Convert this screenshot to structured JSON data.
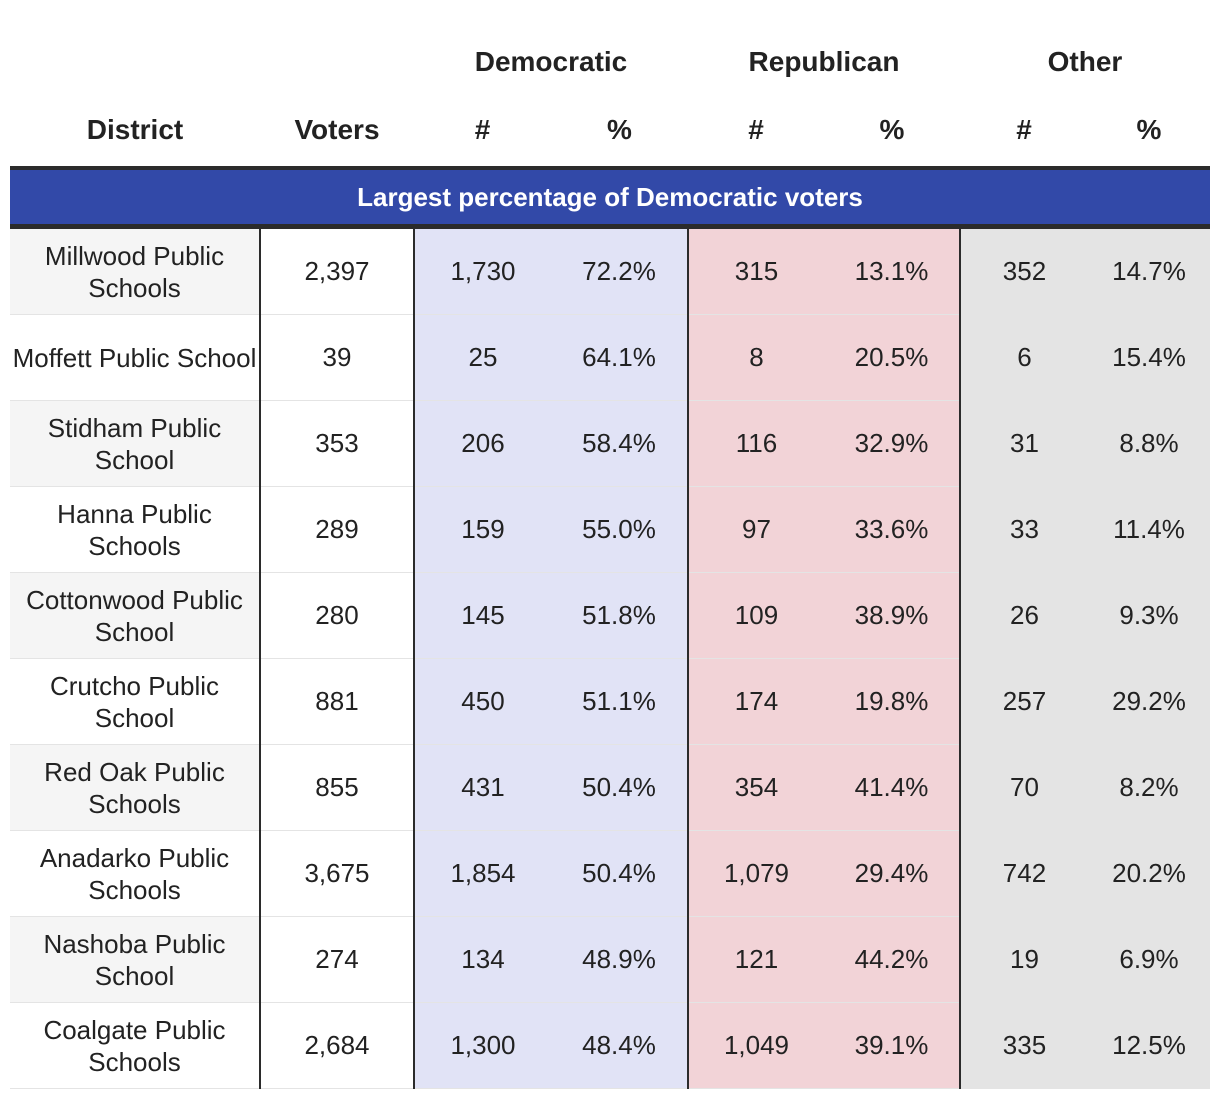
{
  "colors": {
    "banner": "#3249a8",
    "democratic_tint": "#e1e3f6",
    "republican_tint": "#f2d3d7",
    "other_tint": "#e4e4e4",
    "district_row_alt": "#f5f5f5"
  },
  "headers": {
    "groups": {
      "democratic": "Democratic",
      "republican": "Republican",
      "other": "Other"
    },
    "columns": {
      "district": "District",
      "voters": "Voters",
      "dem_num": "#",
      "dem_pct": "%",
      "rep_num": "#",
      "rep_pct": "%",
      "oth_num": "#",
      "oth_pct": "%"
    }
  },
  "section_title": "Largest percentage of Democratic voters",
  "rows": [
    {
      "district": "Millwood Public Schools",
      "voters": "2,397",
      "dem_num": "1,730",
      "dem_pct": "72.2%",
      "rep_num": "315",
      "rep_pct": "13.1%",
      "oth_num": "352",
      "oth_pct": "14.7%"
    },
    {
      "district": "Moffett Public School",
      "voters": "39",
      "dem_num": "25",
      "dem_pct": "64.1%",
      "rep_num": "8",
      "rep_pct": "20.5%",
      "oth_num": "6",
      "oth_pct": "15.4%"
    },
    {
      "district": "Stidham Public School",
      "voters": "353",
      "dem_num": "206",
      "dem_pct": "58.4%",
      "rep_num": "116",
      "rep_pct": "32.9%",
      "oth_num": "31",
      "oth_pct": "8.8%"
    },
    {
      "district": "Hanna Public Schools",
      "voters": "289",
      "dem_num": "159",
      "dem_pct": "55.0%",
      "rep_num": "97",
      "rep_pct": "33.6%",
      "oth_num": "33",
      "oth_pct": "11.4%"
    },
    {
      "district": "Cottonwood Public School",
      "voters": "280",
      "dem_num": "145",
      "dem_pct": "51.8%",
      "rep_num": "109",
      "rep_pct": "38.9%",
      "oth_num": "26",
      "oth_pct": "9.3%"
    },
    {
      "district": "Crutcho Public School",
      "voters": "881",
      "dem_num": "450",
      "dem_pct": "51.1%",
      "rep_num": "174",
      "rep_pct": "19.8%",
      "oth_num": "257",
      "oth_pct": "29.2%"
    },
    {
      "district": "Red Oak Public Schools",
      "voters": "855",
      "dem_num": "431",
      "dem_pct": "50.4%",
      "rep_num": "354",
      "rep_pct": "41.4%",
      "oth_num": "70",
      "oth_pct": "8.2%"
    },
    {
      "district": "Anadarko Public Schools",
      "voters": "3,675",
      "dem_num": "1,854",
      "dem_pct": "50.4%",
      "rep_num": "1,079",
      "rep_pct": "29.4%",
      "oth_num": "742",
      "oth_pct": "20.2%"
    },
    {
      "district": "Nashoba Public School",
      "voters": "274",
      "dem_num": "134",
      "dem_pct": "48.9%",
      "rep_num": "121",
      "rep_pct": "44.2%",
      "oth_num": "19",
      "oth_pct": "6.9%"
    },
    {
      "district": "Coalgate Public Schools",
      "voters": "2,684",
      "dem_num": "1,300",
      "dem_pct": "48.4%",
      "rep_num": "1,049",
      "rep_pct": "39.1%",
      "oth_num": "335",
      "oth_pct": "12.5%"
    }
  ]
}
